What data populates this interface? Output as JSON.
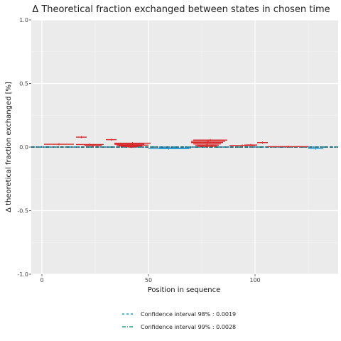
{
  "chart_data": {
    "type": "scatter",
    "title": "Δ Theoretical fraction exchanged between states in chosen time",
    "xlabel": "Position in sequence",
    "ylabel": "Δ theoretical fraction exchanged [%]",
    "xlim": [
      -5,
      139
    ],
    "ylim": [
      -1.0,
      1.0
    ],
    "x_ticks": [
      0,
      50,
      100
    ],
    "y_ticks": [
      -1.0,
      -0.5,
      0.0,
      0.5,
      1.0
    ],
    "y_tick_labels": [
      "-1.0",
      "-0.5",
      "0.0",
      "0.5",
      "1.0"
    ],
    "grid": true,
    "background": "#ebebeb",
    "colors": {
      "positive": "#d62728",
      "negative": "#1f9ad6",
      "ci98": "#1f9ad6",
      "ci99": "#2a9d8f",
      "zero": "#333333"
    },
    "segments": [
      {
        "start": 1,
        "end": 15,
        "value": 0.022
      },
      {
        "start": 16,
        "end": 21,
        "value": 0.078
      },
      {
        "start": 16,
        "end": 29,
        "value": 0.02
      },
      {
        "start": 20,
        "end": 28,
        "value": 0.012
      },
      {
        "start": 30,
        "end": 35,
        "value": 0.058
      },
      {
        "start": 34,
        "end": 51,
        "value": 0.03
      },
      {
        "start": 34,
        "end": 48,
        "value": 0.022
      },
      {
        "start": 35,
        "end": 50,
        "value": 0.015
      },
      {
        "start": 36,
        "end": 47,
        "value": 0.008
      },
      {
        "start": 38,
        "end": 45,
        "value": 0.004
      },
      {
        "start": 40,
        "end": 44,
        "value": 0.001
      },
      {
        "start": 50,
        "end": 69,
        "value": -0.012
      },
      {
        "start": 55,
        "end": 70,
        "value": -0.008
      },
      {
        "start": 71,
        "end": 87,
        "value": 0.055
      },
      {
        "start": 70,
        "end": 86,
        "value": 0.045
      },
      {
        "start": 70,
        "end": 85,
        "value": 0.035
      },
      {
        "start": 71,
        "end": 84,
        "value": 0.025
      },
      {
        "start": 72,
        "end": 83,
        "value": 0.015
      },
      {
        "start": 73,
        "end": 82,
        "value": 0.006
      },
      {
        "start": 88,
        "end": 100,
        "value": 0.012
      },
      {
        "start": 95,
        "end": 101,
        "value": 0.016
      },
      {
        "start": 101,
        "end": 106,
        "value": 0.035
      },
      {
        "start": 106,
        "end": 125,
        "value": 0.003
      },
      {
        "start": 125,
        "end": 132,
        "value": -0.012
      }
    ],
    "ci98": 0.0019,
    "ci99": 0.0028,
    "legend": [
      {
        "label": "Confidence interval 98% : 0.0019",
        "style": "dashed"
      },
      {
        "label": "Confidence interval 99% : 0.0028",
        "style": "dashdot"
      }
    ],
    "legend_position": "bottom"
  }
}
